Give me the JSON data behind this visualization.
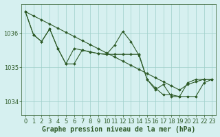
{
  "background_color": "#d6f0f0",
  "plot_bg_color": "#d6f0f0",
  "line_color": "#2d5a27",
  "grid_color": "#9ecfca",
  "xlabel": "Graphe pression niveau de la mer (hPa)",
  "xlabel_fontsize": 7,
  "tick_fontsize": 6,
  "xlim": [
    -0.5,
    23.5
  ],
  "ylim": [
    1033.6,
    1036.85
  ],
  "yticks": [
    1034,
    1035,
    1036
  ],
  "xticks": [
    0,
    1,
    2,
    3,
    4,
    5,
    6,
    7,
    8,
    9,
    10,
    11,
    12,
    13,
    14,
    15,
    16,
    17,
    18,
    19,
    20,
    21,
    22,
    23
  ],
  "series": [
    {
      "x": [
        0,
        1,
        2,
        3,
        4,
        5,
        6,
        7,
        8,
        9,
        10,
        11,
        12,
        13,
        14,
        15,
        16,
        17,
        18,
        19,
        20,
        21,
        22,
        23
      ],
      "y": [
        1036.62,
        1036.5,
        1036.38,
        1036.26,
        1036.14,
        1036.02,
        1035.9,
        1035.78,
        1035.66,
        1035.54,
        1035.42,
        1035.3,
        1035.18,
        1035.06,
        1034.94,
        1034.82,
        1034.7,
        1034.58,
        1034.46,
        1034.34,
        1034.5,
        1034.58,
        1034.65,
        1034.65
      ]
    },
    {
      "x": [
        0,
        1,
        2,
        3,
        4,
        5,
        6,
        7,
        8,
        9,
        10,
        11,
        12,
        13,
        14,
        15,
        16,
        17,
        18,
        19,
        20,
        21,
        22,
        23
      ],
      "y": [
        1036.62,
        1035.95,
        1035.75,
        1036.12,
        1035.55,
        1035.1,
        1035.55,
        1035.5,
        1035.45,
        1035.4,
        1035.38,
        1035.65,
        1036.05,
        1035.75,
        1035.35,
        1034.65,
        1034.4,
        1034.2,
        1034.2,
        1034.15,
        1034.55,
        1034.65,
        1034.65,
        1034.65
      ]
    },
    {
      "x": [
        0,
        1,
        2,
        3,
        4,
        5,
        6,
        7,
        8,
        9,
        10,
        11,
        12,
        13,
        14,
        15,
        16,
        17,
        18,
        19,
        20,
        21,
        22,
        23
      ],
      "y": [
        1036.62,
        1035.95,
        1035.75,
        1036.12,
        1035.55,
        1035.1,
        1035.1,
        1035.5,
        1035.45,
        1035.4,
        1035.38,
        1035.38,
        1035.38,
        1035.38,
        1035.38,
        1034.65,
        1034.35,
        1034.5,
        1034.15,
        1034.15,
        1034.15,
        1034.15,
        1034.55,
        1034.65
      ]
    }
  ]
}
